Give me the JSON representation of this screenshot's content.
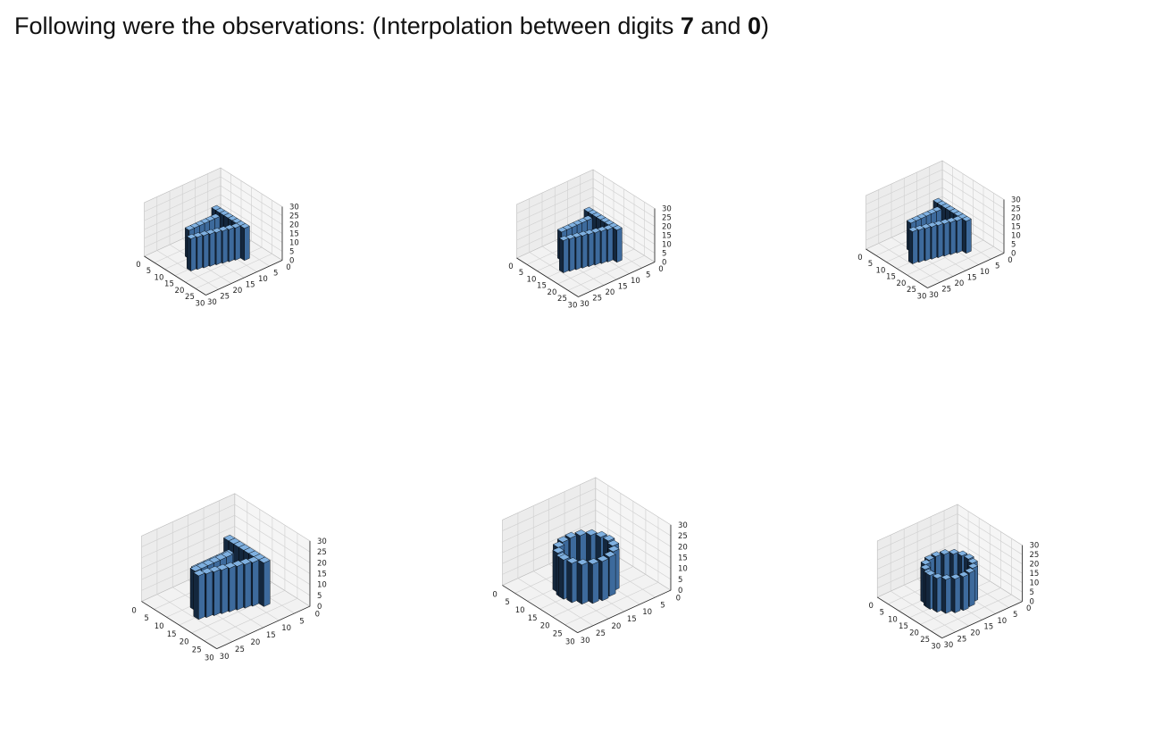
{
  "heading": {
    "prefix": "Following were the observations: (Interpolation between digits ",
    "digit_a": "7",
    "middle": " and ",
    "digit_b": "0",
    "suffix": ")"
  },
  "colors": {
    "voxel_face": "#3d6a9c",
    "voxel_top": "#7fb0e0",
    "voxel_side": "#14273d",
    "voxel_edge": "#000000",
    "pane": "#f2f2f2",
    "grid": "#cfcfcf"
  },
  "chart_data": [
    {
      "type": "voxel3d",
      "step": 1,
      "shape": "seven",
      "xlim": [
        0,
        30
      ],
      "ylim": [
        0,
        30
      ],
      "zlim": [
        0,
        30
      ],
      "x_ticks": [
        "0",
        "5",
        "10",
        "15",
        "20",
        "25",
        "30"
      ],
      "y_ticks": [
        "0",
        "5",
        "10",
        "15",
        "20",
        "25",
        "30"
      ],
      "z_ticks": [
        "0",
        "5",
        "10",
        "15",
        "20",
        "25",
        "30"
      ],
      "grid": true
    },
    {
      "type": "voxel3d",
      "step": 2,
      "shape": "seven",
      "xlim": [
        0,
        30
      ],
      "ylim": [
        0,
        30
      ],
      "zlim": [
        0,
        30
      ],
      "x_ticks": [
        "0",
        "5",
        "10",
        "15",
        "20",
        "25",
        "30"
      ],
      "y_ticks": [
        "0",
        "5",
        "10",
        "15",
        "20",
        "25",
        "30"
      ],
      "z_ticks": [
        "0",
        "5",
        "10",
        "15",
        "20",
        "25",
        "30"
      ],
      "grid": true
    },
    {
      "type": "voxel3d",
      "step": 3,
      "shape": "seven",
      "xlim": [
        0,
        30
      ],
      "ylim": [
        0,
        30
      ],
      "zlim": [
        0,
        30
      ],
      "x_ticks": [
        "0",
        "5",
        "10",
        "15",
        "20",
        "25",
        "30"
      ],
      "y_ticks": [
        "0",
        "5",
        "10",
        "15",
        "20",
        "25",
        "30"
      ],
      "z_ticks": [
        "0",
        "5",
        "10",
        "15",
        "20",
        "25",
        "30"
      ],
      "grid": true
    },
    {
      "type": "voxel3d",
      "step": 4,
      "shape": "seven-zero",
      "xlim": [
        0,
        30
      ],
      "ylim": [
        0,
        30
      ],
      "zlim": [
        0,
        30
      ],
      "x_ticks": [
        "0",
        "5",
        "10",
        "15",
        "20",
        "25",
        "30"
      ],
      "y_ticks": [
        "0",
        "5",
        "10",
        "15",
        "20",
        "25",
        "30"
      ],
      "z_ticks": [
        "0",
        "5",
        "10",
        "15",
        "20",
        "25",
        "30"
      ],
      "grid": true
    },
    {
      "type": "voxel3d",
      "step": 5,
      "shape": "zero",
      "xlim": [
        0,
        30
      ],
      "ylim": [
        0,
        30
      ],
      "zlim": [
        0,
        30
      ],
      "x_ticks": [
        "0",
        "5",
        "10",
        "15",
        "20",
        "25",
        "30"
      ],
      "y_ticks": [
        "0",
        "5",
        "10",
        "15",
        "20",
        "25",
        "30"
      ],
      "z_ticks": [
        "0",
        "5",
        "10",
        "15",
        "20",
        "25",
        "30"
      ],
      "grid": true
    },
    {
      "type": "voxel3d",
      "step": 6,
      "shape": "zero",
      "xlim": [
        0,
        30
      ],
      "ylim": [
        0,
        30
      ],
      "zlim": [
        0,
        30
      ],
      "x_ticks": [
        "0",
        "5",
        "10",
        "15",
        "20",
        "25",
        "30"
      ],
      "y_ticks": [
        "0",
        "5",
        "10",
        "15",
        "20",
        "25",
        "30"
      ],
      "z_ticks": [
        "0",
        "5",
        "10",
        "15",
        "20",
        "25",
        "30"
      ],
      "grid": true
    }
  ]
}
